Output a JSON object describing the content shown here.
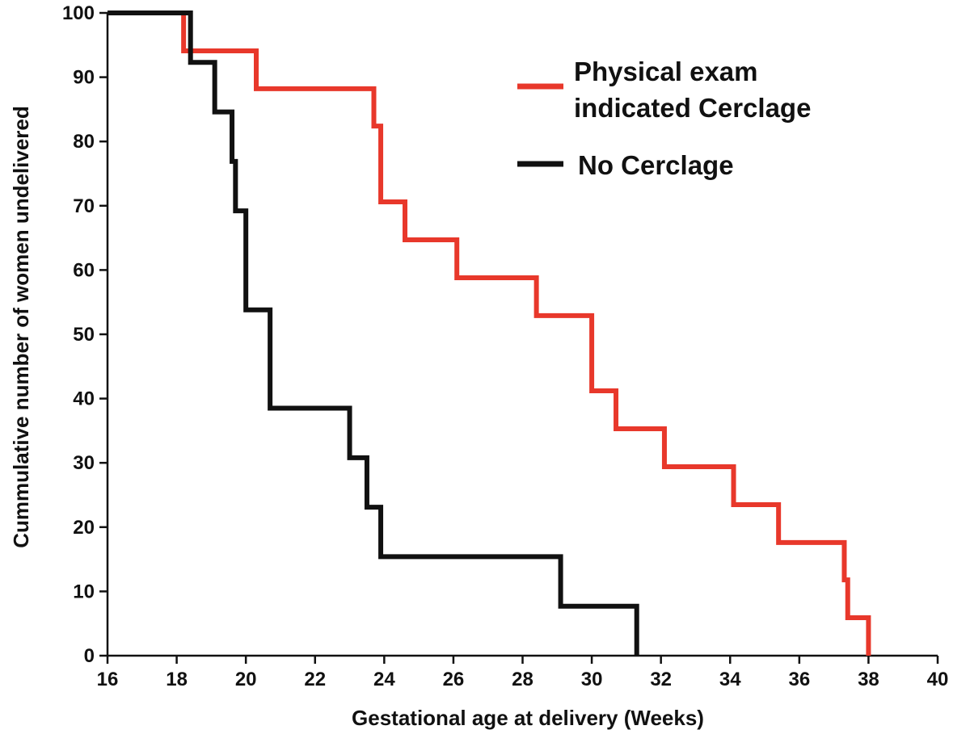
{
  "chart_data": {
    "type": "line",
    "subtype": "step",
    "title": "",
    "xlabel": "Gestational age at delivery (Weeks)",
    "ylabel": "Cummulative number of women undelivered",
    "xlim": [
      16,
      40
    ],
    "ylim": [
      0,
      100
    ],
    "xticks": [
      16,
      18,
      20,
      22,
      24,
      26,
      28,
      30,
      32,
      34,
      36,
      38,
      40
    ],
    "yticks": [
      0,
      10,
      20,
      30,
      40,
      50,
      60,
      70,
      80,
      90,
      100
    ],
    "legend_position": "top-right",
    "series": [
      {
        "name": "Physical exam indicated Cerclage",
        "legend_lines": [
          "Physical exam",
          "indicated Cerclage"
        ],
        "color": "#e8382b",
        "x": [
          16,
          18.2,
          20.3,
          23.7,
          23.9,
          24.6,
          26.1,
          28.4,
          30.0,
          30.7,
          32.1,
          34.1,
          35.4,
          37.3,
          37.4,
          38.0
        ],
        "y": [
          100,
          94.1,
          88.2,
          82.4,
          70.6,
          64.7,
          58.8,
          52.9,
          41.2,
          35.3,
          29.4,
          23.5,
          17.6,
          11.8,
          5.9,
          0
        ]
      },
      {
        "name": "No Cerclage",
        "legend_lines": [
          "No Cerclage"
        ],
        "color": "#111111",
        "x": [
          16,
          18.4,
          19.1,
          19.6,
          19.7,
          20.0,
          20.7,
          23.0,
          23.5,
          23.9,
          29.1,
          31.3
        ],
        "y": [
          100,
          92.3,
          84.6,
          76.9,
          69.2,
          53.8,
          38.5,
          30.8,
          23.1,
          15.4,
          7.7,
          0
        ]
      }
    ]
  }
}
